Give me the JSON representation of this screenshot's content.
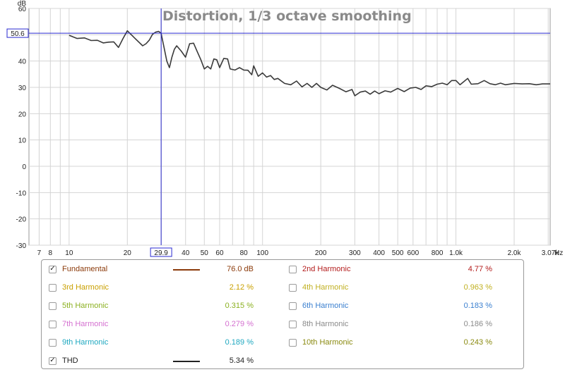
{
  "chart_data": {
    "type": "line",
    "title": "Distortion, 1/3 octave smoothing",
    "ylabel": "dB",
    "xlabel": "Hz",
    "x_scale": "log",
    "xlim": [
      6.2,
      3070
    ],
    "ylim": [
      -30,
      60
    ],
    "y_ticks": [
      -30,
      -20,
      -10,
      0,
      10,
      20,
      30,
      40,
      50,
      60
    ],
    "x_ticks": [
      {
        "v": 7,
        "label": "7"
      },
      {
        "v": 8,
        "label": "8"
      },
      {
        "v": 10,
        "label": "10"
      },
      {
        "v": 20,
        "label": "20"
      },
      {
        "v": 40,
        "label": "40"
      },
      {
        "v": 50,
        "label": "50"
      },
      {
        "v": 60,
        "label": "60"
      },
      {
        "v": 80,
        "label": "80"
      },
      {
        "v": 100,
        "label": "100"
      },
      {
        "v": 200,
        "label": "200"
      },
      {
        "v": 300,
        "label": "300"
      },
      {
        "v": 400,
        "label": "400"
      },
      {
        "v": 500,
        "label": "500"
      },
      {
        "v": 600,
        "label": "600"
      },
      {
        "v": 800,
        "label": "800"
      },
      {
        "v": 1000,
        "label": "1.0k"
      },
      {
        "v": 2000,
        "label": "2.0k"
      },
      {
        "v": 3070,
        "label": "3.07k"
      }
    ],
    "grid": true,
    "cursor": {
      "x": 29.9,
      "y": 50.6,
      "x_label": "29.9",
      "y_label": "50.6"
    },
    "series": [
      {
        "name": "THD",
        "color": "#3a3a3a",
        "x": [
          10,
          11,
          12,
          13,
          14,
          15,
          16,
          17,
          18,
          19,
          20,
          22,
          24,
          25,
          26,
          27,
          28,
          29,
          29.9,
          31,
          32,
          33,
          34,
          35,
          36,
          38,
          40,
          42,
          44,
          46,
          48,
          50,
          52,
          54,
          56,
          58,
          60,
          63,
          66,
          68,
          72,
          76,
          80,
          84,
          88,
          90,
          95,
          100,
          105,
          110,
          115,
          120,
          130,
          140,
          150,
          160,
          170,
          180,
          190,
          200,
          215,
          230,
          250,
          270,
          290,
          300,
          320,
          340,
          360,
          380,
          400,
          430,
          460,
          500,
          540,
          580,
          620,
          660,
          700,
          750,
          800,
          850,
          900,
          950,
          1000,
          1050,
          1100,
          1150,
          1200,
          1300,
          1400,
          1500,
          1600,
          1700,
          1800,
          2000,
          2200,
          2400,
          2600,
          2800,
          3070
        ],
        "values": [
          49.8,
          48.6,
          48.8,
          47.8,
          47.9,
          46.9,
          47.2,
          47.3,
          45.2,
          48.6,
          51.5,
          48.5,
          45.8,
          46.6,
          48.0,
          50.2,
          51.0,
          51.3,
          50.6,
          45.0,
          40.0,
          37.5,
          41.5,
          44.5,
          45.8,
          43.8,
          41.5,
          46.6,
          46.8,
          43.5,
          40.5,
          37.0,
          38.0,
          37.0,
          40.8,
          40.5,
          37.5,
          41.0,
          40.8,
          37.0,
          36.6,
          37.5,
          36.6,
          36.5,
          34.8,
          38.2,
          34.2,
          35.5,
          33.9,
          34.5,
          33.0,
          33.4,
          31.5,
          31.0,
          32.4,
          30.2,
          31.5,
          30.0,
          31.5,
          30.0,
          29.0,
          30.8,
          29.6,
          28.3,
          29.2,
          26.8,
          28.2,
          28.6,
          27.4,
          28.6,
          27.6,
          28.7,
          28.2,
          29.6,
          28.4,
          29.7,
          30.0,
          29.2,
          30.6,
          30.3,
          31.2,
          31.6,
          31.0,
          32.6,
          32.6,
          31.0,
          32.2,
          33.4,
          31.2,
          31.4,
          32.6,
          31.4,
          31.0,
          31.6,
          31.0,
          31.5,
          31.3,
          31.4,
          31.0,
          31.3,
          31.3
        ]
      }
    ]
  },
  "legend": {
    "items": [
      {
        "label": "Fundamental",
        "value": "76.0 dB",
        "checked": true,
        "color": "#8b3a0a",
        "swatch": "#8b3a0a"
      },
      {
        "label": "2nd Harmonic",
        "value": "4.77 %",
        "checked": false,
        "color": "#b31b1b",
        "swatch": ""
      },
      {
        "label": "3rd Harmonic",
        "value": "2.12 %",
        "checked": false,
        "color": "#c9a000",
        "swatch": ""
      },
      {
        "label": "4th Harmonic",
        "value": "0.963 %",
        "checked": false,
        "color": "#c0b020",
        "swatch": ""
      },
      {
        "label": "5th Harmonic",
        "value": "0.315 %",
        "checked": false,
        "color": "#8bb020",
        "swatch": ""
      },
      {
        "label": "6th Harmonic",
        "value": "0.183 %",
        "checked": false,
        "color": "#3a7fcf",
        "swatch": ""
      },
      {
        "label": "7th Harmonic",
        "value": "0.279 %",
        "checked": false,
        "color": "#d470d0",
        "swatch": ""
      },
      {
        "label": "8th Harmonic",
        "value": "0.186 %",
        "checked": false,
        "color": "#8a8a8a",
        "swatch": ""
      },
      {
        "label": "9th Harmonic",
        "value": "0.189 %",
        "checked": false,
        "color": "#1fa8c0",
        "swatch": ""
      },
      {
        "label": "10th Harmonic",
        "value": "0.243 %",
        "checked": false,
        "color": "#8a8a10",
        "swatch": ""
      },
      {
        "label": "THD",
        "value": "5.34 %",
        "checked": true,
        "color": "#222222",
        "swatch": "#222222"
      }
    ]
  }
}
